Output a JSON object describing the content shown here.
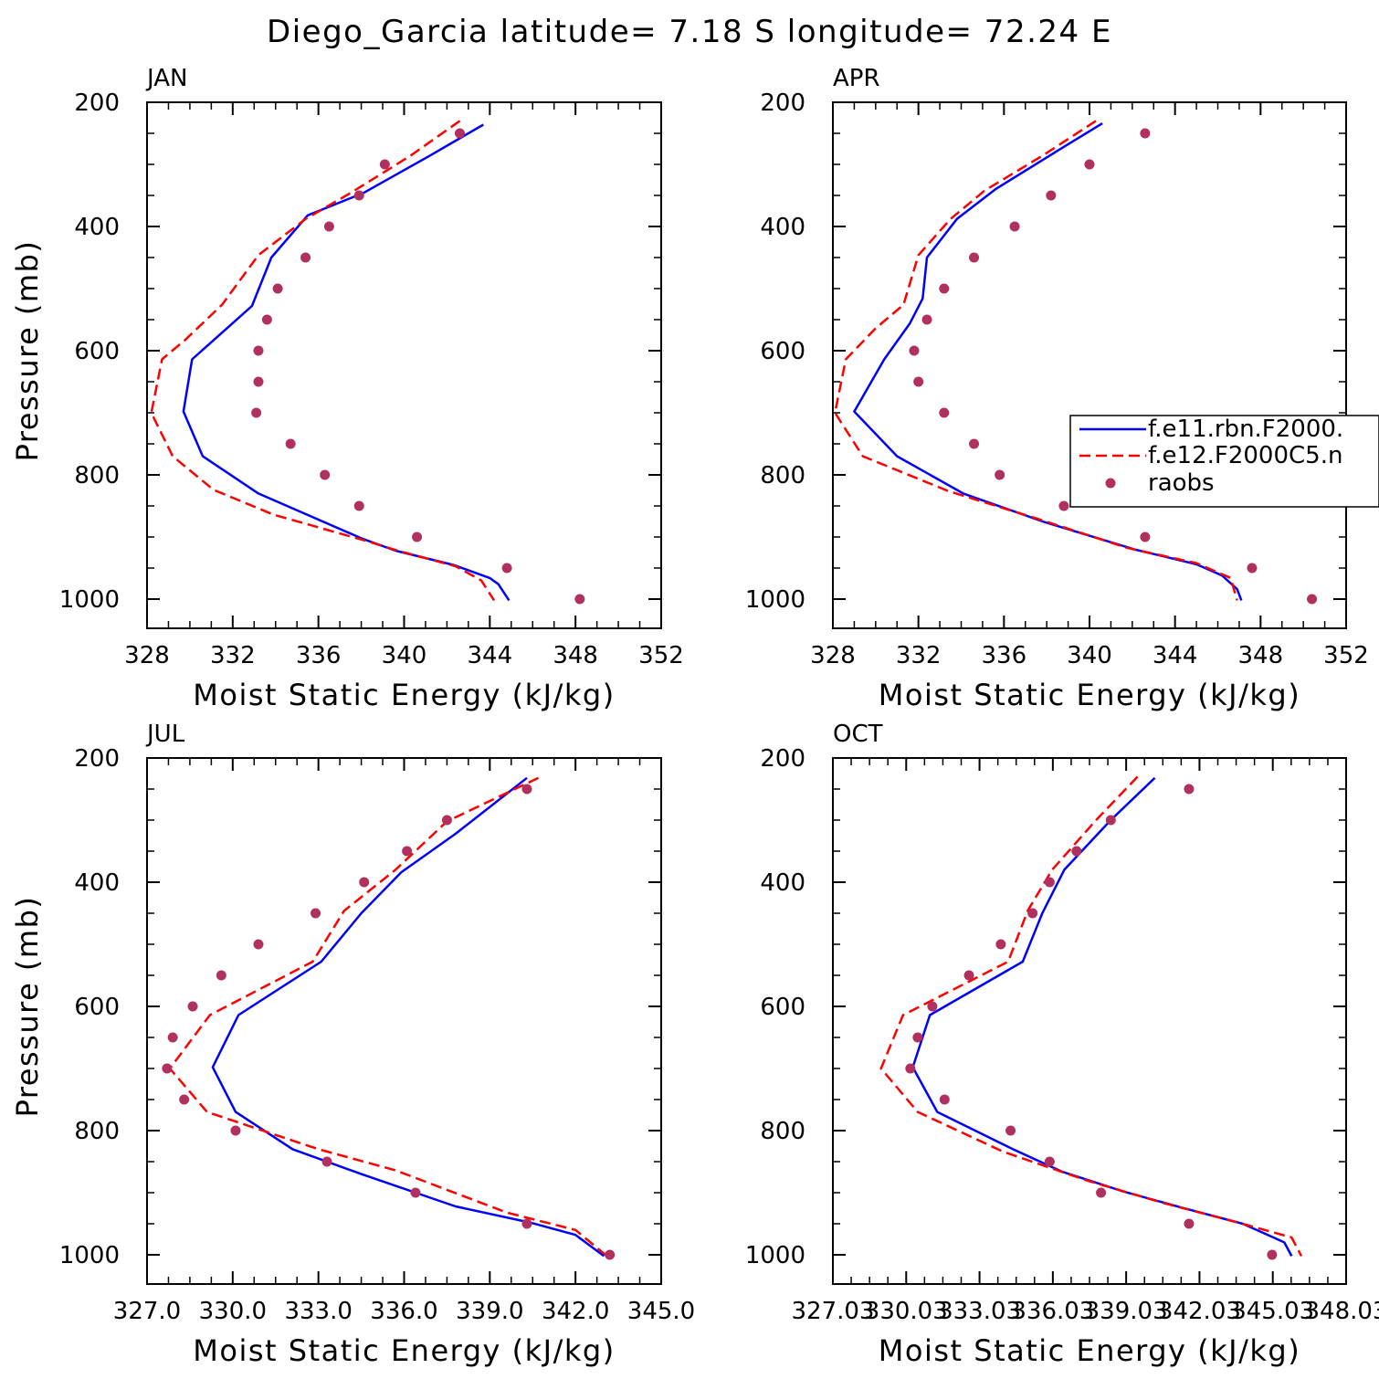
{
  "title": "Diego_Garcia  latitude= 7.18 S longitude= 72.24 E",
  "legend_entries": [
    "f.e11.rbn.F2000.",
    "f.e12.F2000C5.n",
    "raobs"
  ],
  "series_colors": {
    "f.e11.rbn.F2000.": "#0000ff",
    "f.e12.F2000C5.n": "#ff0000",
    "raobs": "#b03060"
  },
  "chart_data": [
    {
      "type": "line",
      "panel": "JAN",
      "title": "JAN",
      "xlabel": "Moist Static Energy (kJ/kg)",
      "ylabel": "Pressure (mb)",
      "xlim": [
        328,
        352
      ],
      "ylim": [
        1000,
        200
      ],
      "y_inverted": true,
      "xticks": [
        "328",
        "332",
        "336",
        "340",
        "344",
        "348",
        "352"
      ],
      "yticks": [
        "200",
        "400",
        "600",
        "800",
        "1000"
      ],
      "grid": false,
      "series": [
        {
          "name": "f.e11.rbn.F2000.",
          "style": "solid",
          "points": [
            [
              343.7,
              236
            ],
            [
              341.1,
              288
            ],
            [
              338.1,
              346
            ],
            [
              335.5,
              382
            ],
            [
              333.8,
              450
            ],
            [
              332.9,
              528
            ],
            [
              330.1,
              614
            ],
            [
              329.7,
              698
            ],
            [
              330.6,
              770
            ],
            [
              333.2,
              830
            ],
            [
              338.0,
              902
            ],
            [
              339.6,
              922
            ],
            [
              342.3,
              945
            ],
            [
              344.0,
              966
            ],
            [
              344.4,
              976
            ],
            [
              344.9,
              1002
            ]
          ]
        },
        {
          "name": "f.e12.F2000C5.n",
          "style": "dashed",
          "points": [
            [
              342.6,
              230
            ],
            [
              340.3,
              286
            ],
            [
              337.5,
              346
            ],
            [
              335.4,
              388
            ],
            [
              333.2,
              446
            ],
            [
              331.5,
              526
            ],
            [
              329.8,
              582
            ],
            [
              328.7,
              614
            ],
            [
              328.2,
              700
            ],
            [
              329.2,
              770
            ],
            [
              331.1,
              824
            ],
            [
              333.9,
              864
            ],
            [
              338.2,
              906
            ],
            [
              339.7,
              922
            ],
            [
              342.4,
              947
            ],
            [
              343.6,
              970
            ],
            [
              344.2,
              1002
            ]
          ]
        },
        {
          "name": "raobs",
          "style": "markers",
          "points": [
            [
              342.6,
              250
            ],
            [
              339.1,
              300
            ],
            [
              337.9,
              350
            ],
            [
              336.5,
              400
            ],
            [
              335.4,
              450
            ],
            [
              334.1,
              500
            ],
            [
              333.6,
              550
            ],
            [
              333.2,
              600
            ],
            [
              333.2,
              650
            ],
            [
              333.1,
              700
            ],
            [
              334.7,
              750
            ],
            [
              336.3,
              800
            ],
            [
              337.9,
              850
            ],
            [
              340.6,
              900
            ],
            [
              344.8,
              950
            ],
            [
              348.2,
              1000
            ]
          ]
        }
      ]
    },
    {
      "type": "line",
      "panel": "APR",
      "title": "APR",
      "xlabel": "Moist Static Energy (kJ/kg)",
      "ylabel": "",
      "xlim": [
        328,
        352
      ],
      "ylim": [
        1000,
        200
      ],
      "y_inverted": true,
      "xticks": [
        "328",
        "332",
        "336",
        "340",
        "344",
        "348",
        "352"
      ],
      "yticks": [
        "200",
        "400",
        "600",
        "800",
        "1000"
      ],
      "grid": false,
      "legend": "right, mid-height",
      "series": [
        {
          "name": "f.e11.rbn.F2000.",
          "style": "solid",
          "points": [
            [
              340.6,
              234
            ],
            [
              338.6,
              276
            ],
            [
              335.6,
              340
            ],
            [
              333.8,
              388
            ],
            [
              332.4,
              450
            ],
            [
              332.2,
              516
            ],
            [
              331.6,
              556
            ],
            [
              330.4,
              614
            ],
            [
              329.0,
              698
            ],
            [
              331.0,
              770
            ],
            [
              334.1,
              830
            ],
            [
              337.9,
              876
            ],
            [
              342.1,
              920
            ],
            [
              345.0,
              944
            ],
            [
              346.2,
              962
            ],
            [
              346.9,
              984
            ],
            [
              347.1,
              1002
            ]
          ]
        },
        {
          "name": "f.e12.F2000C5.n",
          "style": "dashed",
          "points": [
            [
              340.3,
              230
            ],
            [
              337.8,
              286
            ],
            [
              335.1,
              342
            ],
            [
              333.5,
              388
            ],
            [
              332.0,
              446
            ],
            [
              331.3,
              526
            ],
            [
              330.0,
              564
            ],
            [
              328.6,
              614
            ],
            [
              328.1,
              700
            ],
            [
              329.4,
              770
            ],
            [
              333.4,
              826
            ],
            [
              337.5,
              870
            ],
            [
              341.8,
              918
            ],
            [
              345.0,
              942
            ],
            [
              346.6,
              966
            ],
            [
              346.9,
              1002
            ]
          ]
        },
        {
          "name": "raobs",
          "style": "markers",
          "points": [
            [
              342.6,
              250
            ],
            [
              340.0,
              300
            ],
            [
              338.2,
              350
            ],
            [
              336.5,
              400
            ],
            [
              334.6,
              450
            ],
            [
              333.2,
              500
            ],
            [
              332.4,
              550
            ],
            [
              331.8,
              600
            ],
            [
              332.0,
              650
            ],
            [
              333.2,
              700
            ],
            [
              334.6,
              750
            ],
            [
              335.8,
              800
            ],
            [
              338.8,
              850
            ],
            [
              342.6,
              900
            ],
            [
              347.6,
              950
            ],
            [
              350.4,
              1000
            ]
          ]
        }
      ]
    },
    {
      "type": "line",
      "panel": "JUL",
      "title": "JUL",
      "xlabel": "Moist Static Energy (kJ/kg)",
      "ylabel": "Pressure (mb)",
      "xlim": [
        327.0,
        345.0
      ],
      "ylim": [
        1000,
        200
      ],
      "y_inverted": true,
      "xticks": [
        "327.0",
        "330.0",
        "333.0",
        "336.0",
        "339.0",
        "342.0",
        "345.0"
      ],
      "yticks": [
        "200",
        "400",
        "600",
        "800",
        "1000"
      ],
      "grid": false,
      "series": [
        {
          "name": "f.e11.rbn.F2000.",
          "style": "solid",
          "points": [
            [
              340.3,
              232
            ],
            [
              337.8,
              322
            ],
            [
              335.9,
              384
            ],
            [
              334.5,
              450
            ],
            [
              333.1,
              528
            ],
            [
              330.2,
              614
            ],
            [
              329.3,
              698
            ],
            [
              330.1,
              770
            ],
            [
              332.1,
              830
            ],
            [
              334.5,
              870
            ],
            [
              337.8,
              922
            ],
            [
              340.4,
              948
            ],
            [
              342.0,
              968
            ],
            [
              343.0,
              1002
            ]
          ]
        },
        {
          "name": "f.e12.F2000C5.n",
          "style": "dashed",
          "points": [
            [
              340.7,
              232
            ],
            [
              337.5,
              302
            ],
            [
              335.7,
              380
            ],
            [
              333.9,
              446
            ],
            [
              332.8,
              528
            ],
            [
              329.2,
              614
            ],
            [
              327.8,
              700
            ],
            [
              329.1,
              770
            ],
            [
              333.0,
              830
            ],
            [
              335.7,
              864
            ],
            [
              339.6,
              932
            ],
            [
              342.0,
              960
            ],
            [
              343.1,
              1002
            ]
          ]
        },
        {
          "name": "raobs",
          "style": "markers",
          "points": [
            [
              340.3,
              250
            ],
            [
              337.5,
              300
            ],
            [
              336.1,
              350
            ],
            [
              334.6,
              400
            ],
            [
              332.9,
              450
            ],
            [
              330.9,
              500
            ],
            [
              329.6,
              550
            ],
            [
              328.6,
              600
            ],
            [
              327.9,
              650
            ],
            [
              327.7,
              700
            ],
            [
              328.3,
              750
            ],
            [
              330.1,
              800
            ],
            [
              333.3,
              850
            ],
            [
              336.4,
              900
            ],
            [
              340.3,
              950
            ],
            [
              343.2,
              1000
            ]
          ]
        }
      ]
    },
    {
      "type": "line",
      "panel": "OCT",
      "title": "OCT",
      "xlabel": "Moist Static Energy (kJ/kg)",
      "ylabel": "",
      "xlim": [
        327.03,
        348.03
      ],
      "ylim": [
        1000,
        200
      ],
      "y_inverted": true,
      "xticks": [
        "327.03",
        "330.03",
        "333.03",
        "336.03",
        "339.03",
        "342.03",
        "345.03",
        "348.03"
      ],
      "yticks": [
        "200",
        "400",
        "600",
        "800",
        "1000"
      ],
      "grid": false,
      "series": [
        {
          "name": "f.e11.rbn.F2000.",
          "style": "solid",
          "points": [
            [
              340.2,
              232
            ],
            [
              338.4,
              300
            ],
            [
              336.5,
              380
            ],
            [
              335.6,
              450
            ],
            [
              334.8,
              528
            ],
            [
              331.0,
              614
            ],
            [
              330.3,
              698
            ],
            [
              331.3,
              770
            ],
            [
              334.4,
              830
            ],
            [
              336.4,
              866
            ],
            [
              338.9,
              898
            ],
            [
              341.3,
              924
            ],
            [
              343.8,
              950
            ],
            [
              345.5,
              980
            ],
            [
              345.8,
              1002
            ]
          ]
        },
        {
          "name": "f.e12.F2000C5.n",
          "style": "dashed",
          "points": [
            [
              339.5,
              230
            ],
            [
              337.8,
              300
            ],
            [
              336.0,
              380
            ],
            [
              335.0,
              446
            ],
            [
              334.2,
              528
            ],
            [
              329.9,
              614
            ],
            [
              329.0,
              700
            ],
            [
              330.5,
              770
            ],
            [
              334.0,
              834
            ],
            [
              337.4,
              880
            ],
            [
              340.5,
              916
            ],
            [
              343.6,
              948
            ],
            [
              345.8,
              972
            ],
            [
              346.2,
              1002
            ]
          ]
        },
        {
          "name": "raobs",
          "style": "markers",
          "points": [
            [
              341.6,
              250
            ],
            [
              338.4,
              300
            ],
            [
              337.0,
              350
            ],
            [
              335.9,
              400
            ],
            [
              335.2,
              450
            ],
            [
              333.9,
              500
            ],
            [
              332.6,
              550
            ],
            [
              331.1,
              600
            ],
            [
              330.5,
              650
            ],
            [
              330.2,
              700
            ],
            [
              331.6,
              750
            ],
            [
              334.3,
              800
            ],
            [
              335.9,
              850
            ],
            [
              338.0,
              900
            ],
            [
              341.6,
              950
            ],
            [
              345.0,
              1000
            ]
          ]
        }
      ]
    }
  ]
}
